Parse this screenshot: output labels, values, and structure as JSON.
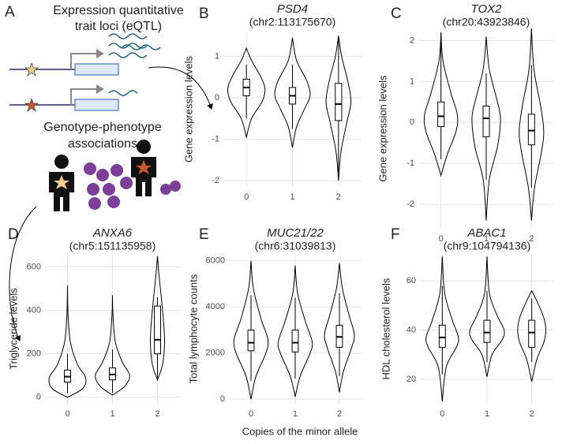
{
  "illustration": {
    "panel": "A",
    "heading": [
      "Expression quantitative",
      "trait loci (eQTL)"
    ],
    "caption": [
      "Genotype-phenotype",
      "associations"
    ]
  },
  "x_label": "Copies of the minor allele",
  "chart_data": [
    {
      "type": "violin",
      "panel": "B",
      "title": "PSD4",
      "subtitle": "(chr2:113175670)",
      "ylabel": "Gene expression levels",
      "categories": [
        "0",
        "1",
        "2"
      ],
      "ylim": [
        -2.15,
        1.6
      ],
      "yticks": [
        -2,
        -1,
        0,
        1
      ],
      "grid": true,
      "color": "#000000",
      "groups": [
        {
          "violin_y": [
            -0.95,
            -0.5,
            -0.1,
            0.2,
            0.5,
            0.9,
            1.2
          ],
          "violin_width": [
            0,
            0.25,
            0.75,
            0.9,
            0.7,
            0.25,
            0
          ],
          "box": {
            "low": -0.5,
            "q1": 0.05,
            "median": 0.25,
            "q3": 0.45,
            "high": 0.8
          }
        },
        {
          "violin_y": [
            -1.2,
            -0.7,
            -0.3,
            0.05,
            0.4,
            0.9,
            1.45
          ],
          "violin_width": [
            0,
            0.2,
            0.55,
            0.85,
            0.7,
            0.2,
            0
          ],
          "box": {
            "low": -0.75,
            "q1": -0.15,
            "median": 0.05,
            "q3": 0.25,
            "high": 0.8
          }
        },
        {
          "violin_y": [
            -2.0,
            -1.3,
            -0.6,
            -0.1,
            0.4,
            1.0,
            1.5
          ],
          "violin_width": [
            0,
            0.12,
            0.4,
            0.6,
            0.45,
            0.15,
            0
          ],
          "box": {
            "low": -1.8,
            "q1": -0.55,
            "median": -0.15,
            "q3": 0.35,
            "high": 1.4
          }
        }
      ]
    },
    {
      "type": "violin",
      "panel": "C",
      "title": "TOX2",
      "subtitle": "(chr20:43923846)",
      "ylabel": "Gene expression levels",
      "categories": [
        "0",
        "1",
        "2"
      ],
      "ylim": [
        -2.6,
        2.3
      ],
      "yticks": [
        -2,
        -1,
        0,
        1,
        2
      ],
      "grid": true,
      "color": "#000000",
      "groups": [
        {
          "violin_y": [
            -1.3,
            -0.8,
            -0.2,
            0.2,
            0.7,
            1.5,
            2.2
          ],
          "violin_width": [
            0,
            0.3,
            0.75,
            0.8,
            0.5,
            0.1,
            0
          ],
          "box": {
            "low": -0.9,
            "q1": -0.1,
            "median": 0.15,
            "q3": 0.5,
            "high": 2.2
          }
        },
        {
          "violin_y": [
            -2.4,
            -1.4,
            -0.6,
            0.1,
            0.6,
            1.3,
            2.1
          ],
          "violin_width": [
            0,
            0.15,
            0.55,
            0.7,
            0.5,
            0.15,
            0
          ],
          "box": {
            "low": -1.4,
            "q1": -0.35,
            "median": 0.1,
            "q3": 0.4,
            "high": 1.2
          }
        },
        {
          "violin_y": [
            -2.4,
            -1.6,
            -0.7,
            -0.2,
            0.4,
            1.3,
            2.3
          ],
          "violin_width": [
            0,
            0.15,
            0.5,
            0.6,
            0.45,
            0.12,
            0
          ],
          "box": {
            "low": -1.6,
            "q1": -0.55,
            "median": -0.2,
            "q3": 0.2,
            "high": 1.4
          }
        }
      ]
    },
    {
      "type": "violin",
      "panel": "D",
      "title": "ANXA6",
      "subtitle": "(chr5:151135958)",
      "ylabel": "Triglyceride levels",
      "categories": [
        "0",
        "1",
        "2"
      ],
      "ylim": [
        -30,
        660
      ],
      "yticks": [
        0,
        200,
        400,
        600
      ],
      "grid": true,
      "color": "#000000",
      "groups": [
        {
          "violin_y": [
            0,
            40,
            90,
            150,
            250,
            380,
            515
          ],
          "violin_width": [
            0,
            0.75,
            0.9,
            0.5,
            0.15,
            0.03,
            0
          ],
          "box": {
            "low": 20,
            "q1": 70,
            "median": 95,
            "q3": 125,
            "high": 200
          }
        },
        {
          "violin_y": [
            10,
            50,
            100,
            160,
            250,
            370,
            470
          ],
          "violin_width": [
            0,
            0.6,
            0.85,
            0.5,
            0.15,
            0.03,
            0
          ],
          "box": {
            "low": 20,
            "q1": 80,
            "median": 105,
            "q3": 135,
            "high": 220
          }
        },
        {
          "violin_y": [
            80,
            150,
            250,
            350,
            450,
            560,
            650
          ],
          "violin_width": [
            0,
            0.25,
            0.35,
            0.3,
            0.2,
            0.08,
            0
          ],
          "box": {
            "low": 90,
            "q1": 200,
            "median": 265,
            "q3": 420,
            "high": 460
          }
        }
      ]
    },
    {
      "type": "violin",
      "panel": "E",
      "title": "MUC21/22",
      "subtitle": "(chr6:31039813)",
      "ylabel": "Total lymphocyte counts",
      "categories": [
        "0",
        "1",
        "2"
      ],
      "ylim": [
        -200,
        6300
      ],
      "yticks": [
        0,
        2000,
        4000,
        6000
      ],
      "grid": true,
      "color": "#000000",
      "groups": [
        {
          "violin_y": [
            0,
            1000,
            2000,
            2600,
            3500,
            4800,
            6000
          ],
          "violin_width": [
            0,
            0.25,
            0.75,
            0.85,
            0.5,
            0.12,
            0
          ],
          "box": {
            "low": 800,
            "q1": 2100,
            "median": 2450,
            "q3": 3000,
            "high": 4500
          }
        },
        {
          "violin_y": [
            100,
            1000,
            2000,
            2500,
            3400,
            4600,
            5800
          ],
          "violin_width": [
            0,
            0.25,
            0.75,
            0.85,
            0.5,
            0.12,
            0
          ],
          "box": {
            "low": 900,
            "q1": 2050,
            "median": 2450,
            "q3": 3000,
            "high": 4400
          }
        },
        {
          "violin_y": [
            300,
            1200,
            2200,
            2800,
            3600,
            4800,
            5900
          ],
          "violin_width": [
            0,
            0.2,
            0.6,
            0.75,
            0.5,
            0.15,
            0
          ],
          "box": {
            "low": 1000,
            "q1": 2250,
            "median": 2700,
            "q3": 3200,
            "high": 4600
          }
        }
      ]
    },
    {
      "type": "violin",
      "panel": "F",
      "title": "ABAC1",
      "subtitle": "(chr9:104794136)",
      "ylabel": "HDL cholesterol levels",
      "categories": [
        "0",
        "1",
        "2"
      ],
      "ylim": [
        10,
        71
      ],
      "yticks": [
        20,
        40,
        60
      ],
      "grid": true,
      "color": "#000000",
      "groups": [
        {
          "violin_y": [
            11,
            25,
            33,
            37,
            44,
            55,
            70
          ],
          "violin_width": [
            0,
            0.2,
            0.7,
            0.8,
            0.5,
            0.12,
            0
          ],
          "box": {
            "low": 22,
            "q1": 33,
            "median": 37,
            "q3": 42,
            "high": 58
          }
        },
        {
          "violin_y": [
            21,
            30,
            36,
            40,
            46,
            55,
            70
          ],
          "violin_width": [
            0,
            0.25,
            0.75,
            0.85,
            0.5,
            0.12,
            0
          ],
          "box": {
            "low": 27,
            "q1": 35,
            "median": 39,
            "q3": 44,
            "high": 56
          }
        },
        {
          "violin_y": [
            19,
            28,
            35,
            40,
            45,
            51,
            56
          ],
          "violin_width": [
            0,
            0.25,
            0.6,
            0.7,
            0.6,
            0.3,
            0
          ],
          "box": {
            "low": 27,
            "q1": 33,
            "median": 39,
            "q3": 44,
            "high": 53
          }
        }
      ]
    }
  ]
}
